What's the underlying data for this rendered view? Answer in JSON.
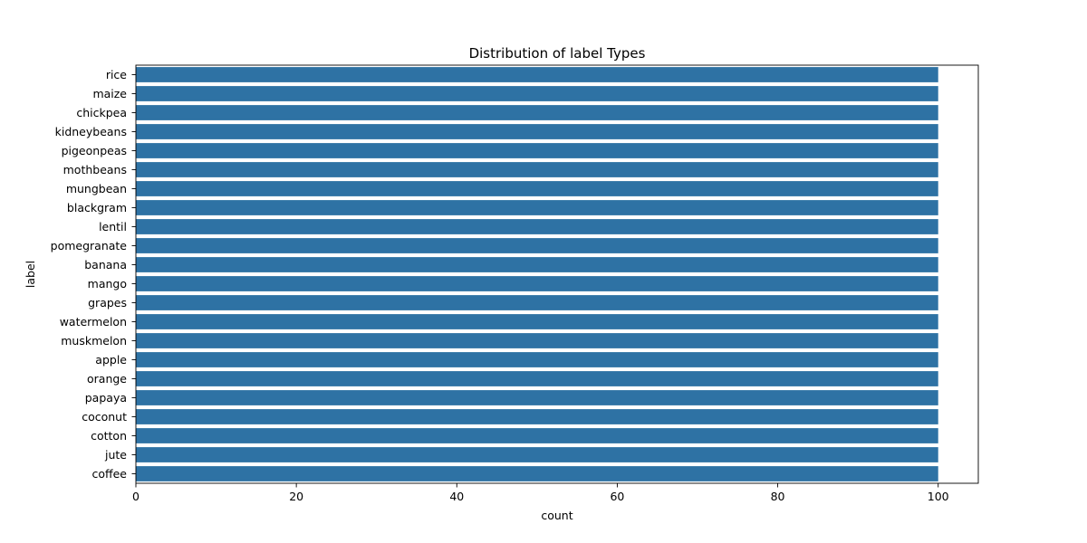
{
  "chart_data": {
    "type": "bar",
    "orientation": "horizontal",
    "title": "Distribution of label Types",
    "xlabel": "count",
    "ylabel": "label",
    "xlim": [
      0,
      105
    ],
    "xticks": [
      0,
      20,
      40,
      60,
      80,
      100
    ],
    "grid": false,
    "legend": "none",
    "bar_color": "#2e72a4",
    "categories": [
      "rice",
      "maize",
      "chickpea",
      "kidneybeans",
      "pigeonpeas",
      "mothbeans",
      "mungbean",
      "blackgram",
      "lentil",
      "pomegranate",
      "banana",
      "mango",
      "grapes",
      "watermelon",
      "muskmelon",
      "apple",
      "orange",
      "papaya",
      "coconut",
      "cotton",
      "jute",
      "coffee"
    ],
    "values": [
      100,
      100,
      100,
      100,
      100,
      100,
      100,
      100,
      100,
      100,
      100,
      100,
      100,
      100,
      100,
      100,
      100,
      100,
      100,
      100,
      100,
      100
    ]
  }
}
